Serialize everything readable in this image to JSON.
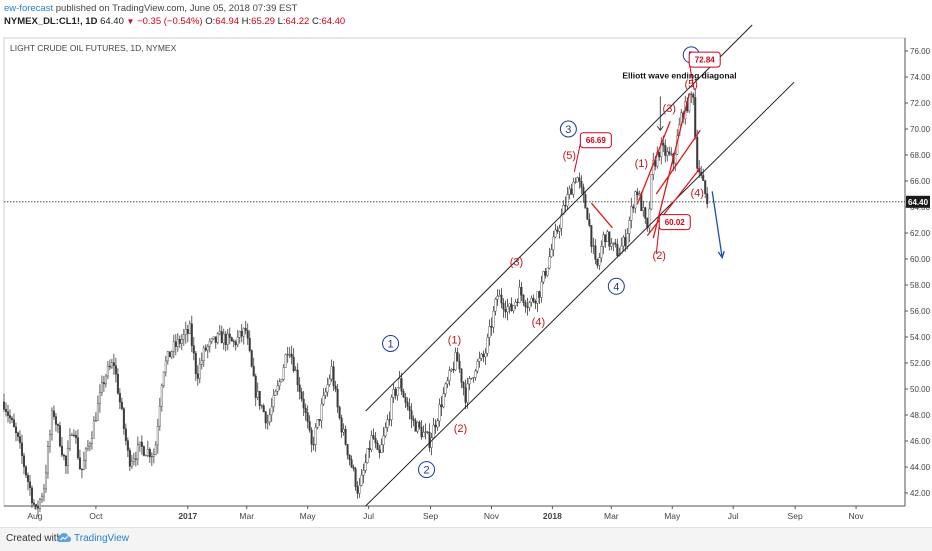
{
  "header": {
    "author": "ew-forecast",
    "published": "published on TradingView.com, June 05, 2018 07:39 EST",
    "symbol": "NYMEX_DL:CL1!, 1D",
    "last": "64.40",
    "change": "−0.35 (−0.54%)",
    "open_label": "O:",
    "open": "64.94",
    "high_label": "H:",
    "high": "65.29",
    "low_label": "L:",
    "low": "64.22",
    "close_label": "C:",
    "close": "64.40"
  },
  "footer": {
    "created_with": "Created with",
    "brand": "TradingView"
  },
  "icons": {
    "down_arrow": "triangle-down-icon",
    "logo": "tradingview-cloud-icon"
  },
  "chart_data": {
    "type": "candlestick",
    "title": "LIGHT CRUDE OIL FUTURES, 1D, NYMEX",
    "price_axis": {
      "side": "right",
      "min": 41,
      "max": 77,
      "ticks": [
        42,
        44,
        46,
        48,
        50,
        52,
        54,
        56,
        58,
        60,
        62,
        64,
        66,
        68,
        70,
        72,
        74,
        76
      ]
    },
    "x_ticks": [
      {
        "label": "Aug",
        "date": "2016-08-01",
        "bold": false
      },
      {
        "label": "Oct",
        "date": "2016-10-01",
        "bold": false
      },
      {
        "label": "2017",
        "date": "2017-01-01",
        "bold": true
      },
      {
        "label": "Mar",
        "date": "2017-03-01",
        "bold": false
      },
      {
        "label": "May",
        "date": "2017-05-01",
        "bold": false
      },
      {
        "label": "Jul",
        "date": "2017-07-01",
        "bold": false
      },
      {
        "label": "Sep",
        "date": "2017-09-01",
        "bold": false
      },
      {
        "label": "Nov",
        "date": "2017-11-01",
        "bold": false
      },
      {
        "label": "2018",
        "date": "2018-01-01",
        "bold": true
      },
      {
        "label": "Mar",
        "date": "2018-03-01",
        "bold": false
      },
      {
        "label": "May",
        "date": "2018-05-01",
        "bold": false
      },
      {
        "label": "Jul",
        "date": "2018-07-01",
        "bold": false
      },
      {
        "label": "Sep",
        "date": "2018-09-01",
        "bold": false
      },
      {
        "label": "Nov",
        "date": "2018-11-01",
        "bold": false
      }
    ],
    "x_range": [
      "2016-07-01",
      "2018-12-20"
    ],
    "last_price": 64.4,
    "last_price_label": "64.40",
    "grid": false,
    "price_path": [
      [
        "2016-07-01",
        49.0
      ],
      [
        "2016-07-15",
        46.0
      ],
      [
        "2016-08-02",
        40.5
      ],
      [
        "2016-08-10",
        42.5
      ],
      [
        "2016-08-19",
        48.5
      ],
      [
        "2016-09-01",
        44.0
      ],
      [
        "2016-09-08",
        47.5
      ],
      [
        "2016-09-16",
        43.5
      ],
      [
        "2016-09-28",
        47.0
      ],
      [
        "2016-10-10",
        51.0
      ],
      [
        "2016-10-19",
        52.0
      ],
      [
        "2016-11-03",
        44.5
      ],
      [
        "2016-11-15",
        45.5
      ],
      [
        "2016-11-29",
        45.0
      ],
      [
        "2016-12-07",
        51.5
      ],
      [
        "2016-12-16",
        53.0
      ],
      [
        "2017-01-03",
        54.5
      ],
      [
        "2017-01-10",
        51.0
      ],
      [
        "2017-01-18",
        53.0
      ],
      [
        "2017-02-03",
        54.0
      ],
      [
        "2017-02-16",
        53.5
      ],
      [
        "2017-02-28",
        54.5
      ],
      [
        "2017-03-09",
        50.0
      ],
      [
        "2017-03-22",
        47.5
      ],
      [
        "2017-04-03",
        50.5
      ],
      [
        "2017-04-12",
        53.5
      ],
      [
        "2017-04-27",
        48.8
      ],
      [
        "2017-05-05",
        45.5
      ],
      [
        "2017-05-25",
        51.5
      ],
      [
        "2017-06-01",
        48.0
      ],
      [
        "2017-06-21",
        42.0
      ],
      [
        "2017-07-05",
        46.5
      ],
      [
        "2017-07-11",
        44.5
      ],
      [
        "2017-07-26",
        49.5
      ],
      [
        "2017-08-01",
        50.5
      ],
      [
        "2017-08-14",
        47.5
      ],
      [
        "2017-08-31",
        46.0
      ],
      [
        "2017-09-14",
        49.5
      ],
      [
        "2017-09-27",
        52.5
      ],
      [
        "2017-10-06",
        49.5
      ],
      [
        "2017-10-16",
        51.8
      ],
      [
        "2017-10-25",
        52.5
      ],
      [
        "2017-11-07",
        57.2
      ],
      [
        "2017-11-20",
        56.0
      ],
      [
        "2017-11-29",
        57.5
      ],
      [
        "2017-12-08",
        56.5
      ],
      [
        "2017-12-19",
        57.5
      ],
      [
        "2018-01-03",
        61.5
      ],
      [
        "2018-01-15",
        64.5
      ],
      [
        "2018-01-25",
        66.5
      ],
      [
        "2018-02-05",
        63.5
      ],
      [
        "2018-02-14",
        59.0
      ],
      [
        "2018-02-22",
        62.0
      ],
      [
        "2018-03-01",
        61.0
      ],
      [
        "2018-03-08",
        60.5
      ],
      [
        "2018-03-15",
        61.5
      ],
      [
        "2018-03-26",
        65.5
      ],
      [
        "2018-04-02",
        63.5
      ],
      [
        "2018-04-06",
        62.0
      ],
      [
        "2018-04-11",
        67.0
      ],
      [
        "2018-04-19",
        68.5
      ],
      [
        "2018-04-26",
        68.0
      ],
      [
        "2018-05-02",
        67.5
      ],
      [
        "2018-05-10",
        71.0
      ],
      [
        "2018-05-22",
        72.8
      ],
      [
        "2018-05-25",
        67.8
      ],
      [
        "2018-05-29",
        66.5
      ],
      [
        "2018-06-05",
        64.4
      ]
    ],
    "channel_lines": [
      {
        "name": "upper",
        "from": [
          "2017-06-28",
          48.3
        ],
        "to": [
          "2018-07-20",
          78.0
        ],
        "color": "#222222"
      },
      {
        "name": "lower",
        "from": [
          "2017-06-28",
          41.0
        ],
        "to": [
          "2018-08-31",
          73.6
        ],
        "color": "#222222"
      }
    ],
    "diagonal_lines": [
      {
        "from": [
          "2018-03-27",
          64.2
        ],
        "to": [
          "2018-04-29",
          70.6
        ]
      },
      {
        "from": [
          "2018-04-12",
          61.6
        ],
        "to": [
          "2018-05-18",
          72.7
        ]
      },
      {
        "from": [
          "2018-04-06",
          61.8
        ],
        "to": [
          "2018-05-29",
          67.0
        ]
      },
      {
        "from": [
          "2018-04-15",
          65.0
        ],
        "to": [
          "2018-05-29",
          69.9
        ]
      },
      {
        "from": [
          "2018-02-09",
          64.3
        ],
        "to": [
          "2018-03-02",
          62.4
        ]
      }
    ],
    "forecast_arrow": {
      "from": [
        "2018-06-10",
        65.2
      ],
      "to": [
        "2018-06-20",
        60.1
      ],
      "color": "#1f4fa8"
    },
    "wave_labels": [
      {
        "text": "1",
        "date": "2017-07-23",
        "price": 53.5,
        "style": "circle"
      },
      {
        "text": "2",
        "date": "2017-08-28",
        "price": 43.8,
        "style": "circle"
      },
      {
        "text": "3",
        "date": "2018-01-17",
        "price": 70.0,
        "style": "circle"
      },
      {
        "text": "4",
        "date": "2018-03-06",
        "price": 57.9,
        "style": "circle"
      },
      {
        "text": "5",
        "date": "2018-05-20",
        "price": 75.7,
        "style": "circle"
      },
      {
        "text": "(1)",
        "date": "2017-09-25",
        "price": 53.8,
        "style": "paren"
      },
      {
        "text": "(2)",
        "date": "2017-10-01",
        "price": 47.0,
        "style": "paren"
      },
      {
        "text": "(3)",
        "date": "2017-11-26",
        "price": 59.8,
        "style": "paren"
      },
      {
        "text": "(4)",
        "date": "2017-12-18",
        "price": 55.2,
        "style": "paren"
      },
      {
        "text": "(5)",
        "date": "2018-01-18",
        "price": 68.0,
        "style": "paren"
      },
      {
        "text": "(1)",
        "date": "2018-03-31",
        "price": 67.4,
        "style": "paren"
      },
      {
        "text": "(2)",
        "date": "2018-04-18",
        "price": 60.3,
        "style": "paren"
      },
      {
        "text": "(3)",
        "date": "2018-04-28",
        "price": 71.6,
        "style": "paren"
      },
      {
        "text": "(4)",
        "date": "2018-05-26",
        "price": 65.1,
        "style": "paren"
      },
      {
        "text": "(5)",
        "date": "2018-05-20",
        "price": 73.5,
        "style": "paren"
      }
    ],
    "price_callouts": [
      {
        "text": "66.69",
        "date": "2018-02-13",
        "price": 69.1,
        "pointer": [
          "2018-01-23",
          66.7
        ]
      },
      {
        "text": "60.02",
        "date": "2018-05-03",
        "price": 62.8,
        "pointer": [
          "2018-04-15",
          60.4
        ]
      },
      {
        "text": "72.84",
        "date": "2018-06-02",
        "price": 75.3,
        "pointer": [
          "2018-05-23",
          73.0
        ]
      }
    ],
    "annotations": [
      {
        "text": "Elliott wave ending diagonal",
        "date": "2018-03-12",
        "price": 73.9,
        "pointer_from": [
          "2018-04-19",
          72.5
        ],
        "pointer_to": [
          "2018-04-19",
          69.9
        ]
      }
    ]
  }
}
